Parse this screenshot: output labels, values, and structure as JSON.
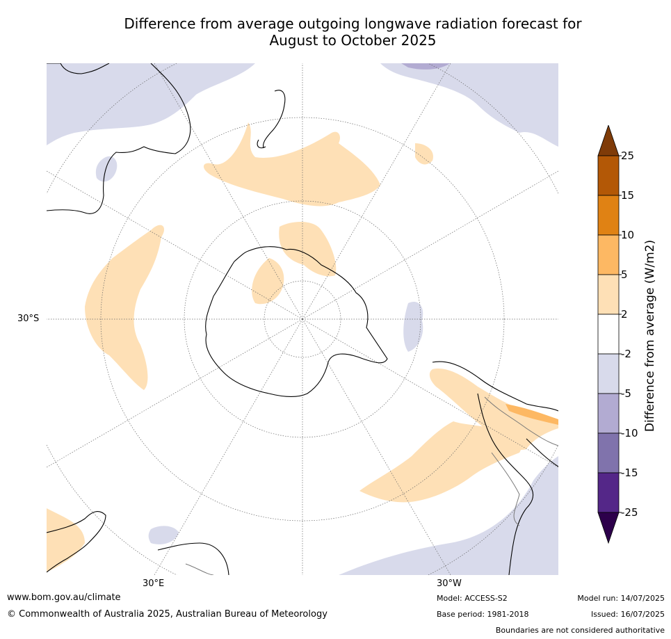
{
  "title_line1": "Difference from average outgoing longwave radiation forecast for",
  "title_line2": "August to October 2025",
  "map": {
    "lat_label": "30°S",
    "lon_labels": [
      "30°E",
      "30°W"
    ]
  },
  "legend": {
    "title": "Difference from average (W/m2)",
    "ticks": [
      "25",
      "15",
      "10",
      "5",
      "2",
      "-2",
      "-5",
      "-10",
      "-15",
      "-25"
    ],
    "colors": [
      "#7f3b08",
      "#b35806",
      "#e08214",
      "#fdb863",
      "#fee0b6",
      "#ffffff",
      "#d8daeb",
      "#b2abd2",
      "#8073ac",
      "#542788",
      "#2d004b"
    ]
  },
  "footer": {
    "website": "www.bom.gov.au/climate",
    "copyright": "© Commonwealth of Australia 2025, Australian Bureau of Meteorology",
    "model": "Model: ACCESS-S2",
    "base_period": "Base period: 1981-2018",
    "model_run": "Model run: 14/07/2025",
    "issued": "Issued: 16/07/2025",
    "disclaimer": "Boundaries are not considered authoritative"
  }
}
